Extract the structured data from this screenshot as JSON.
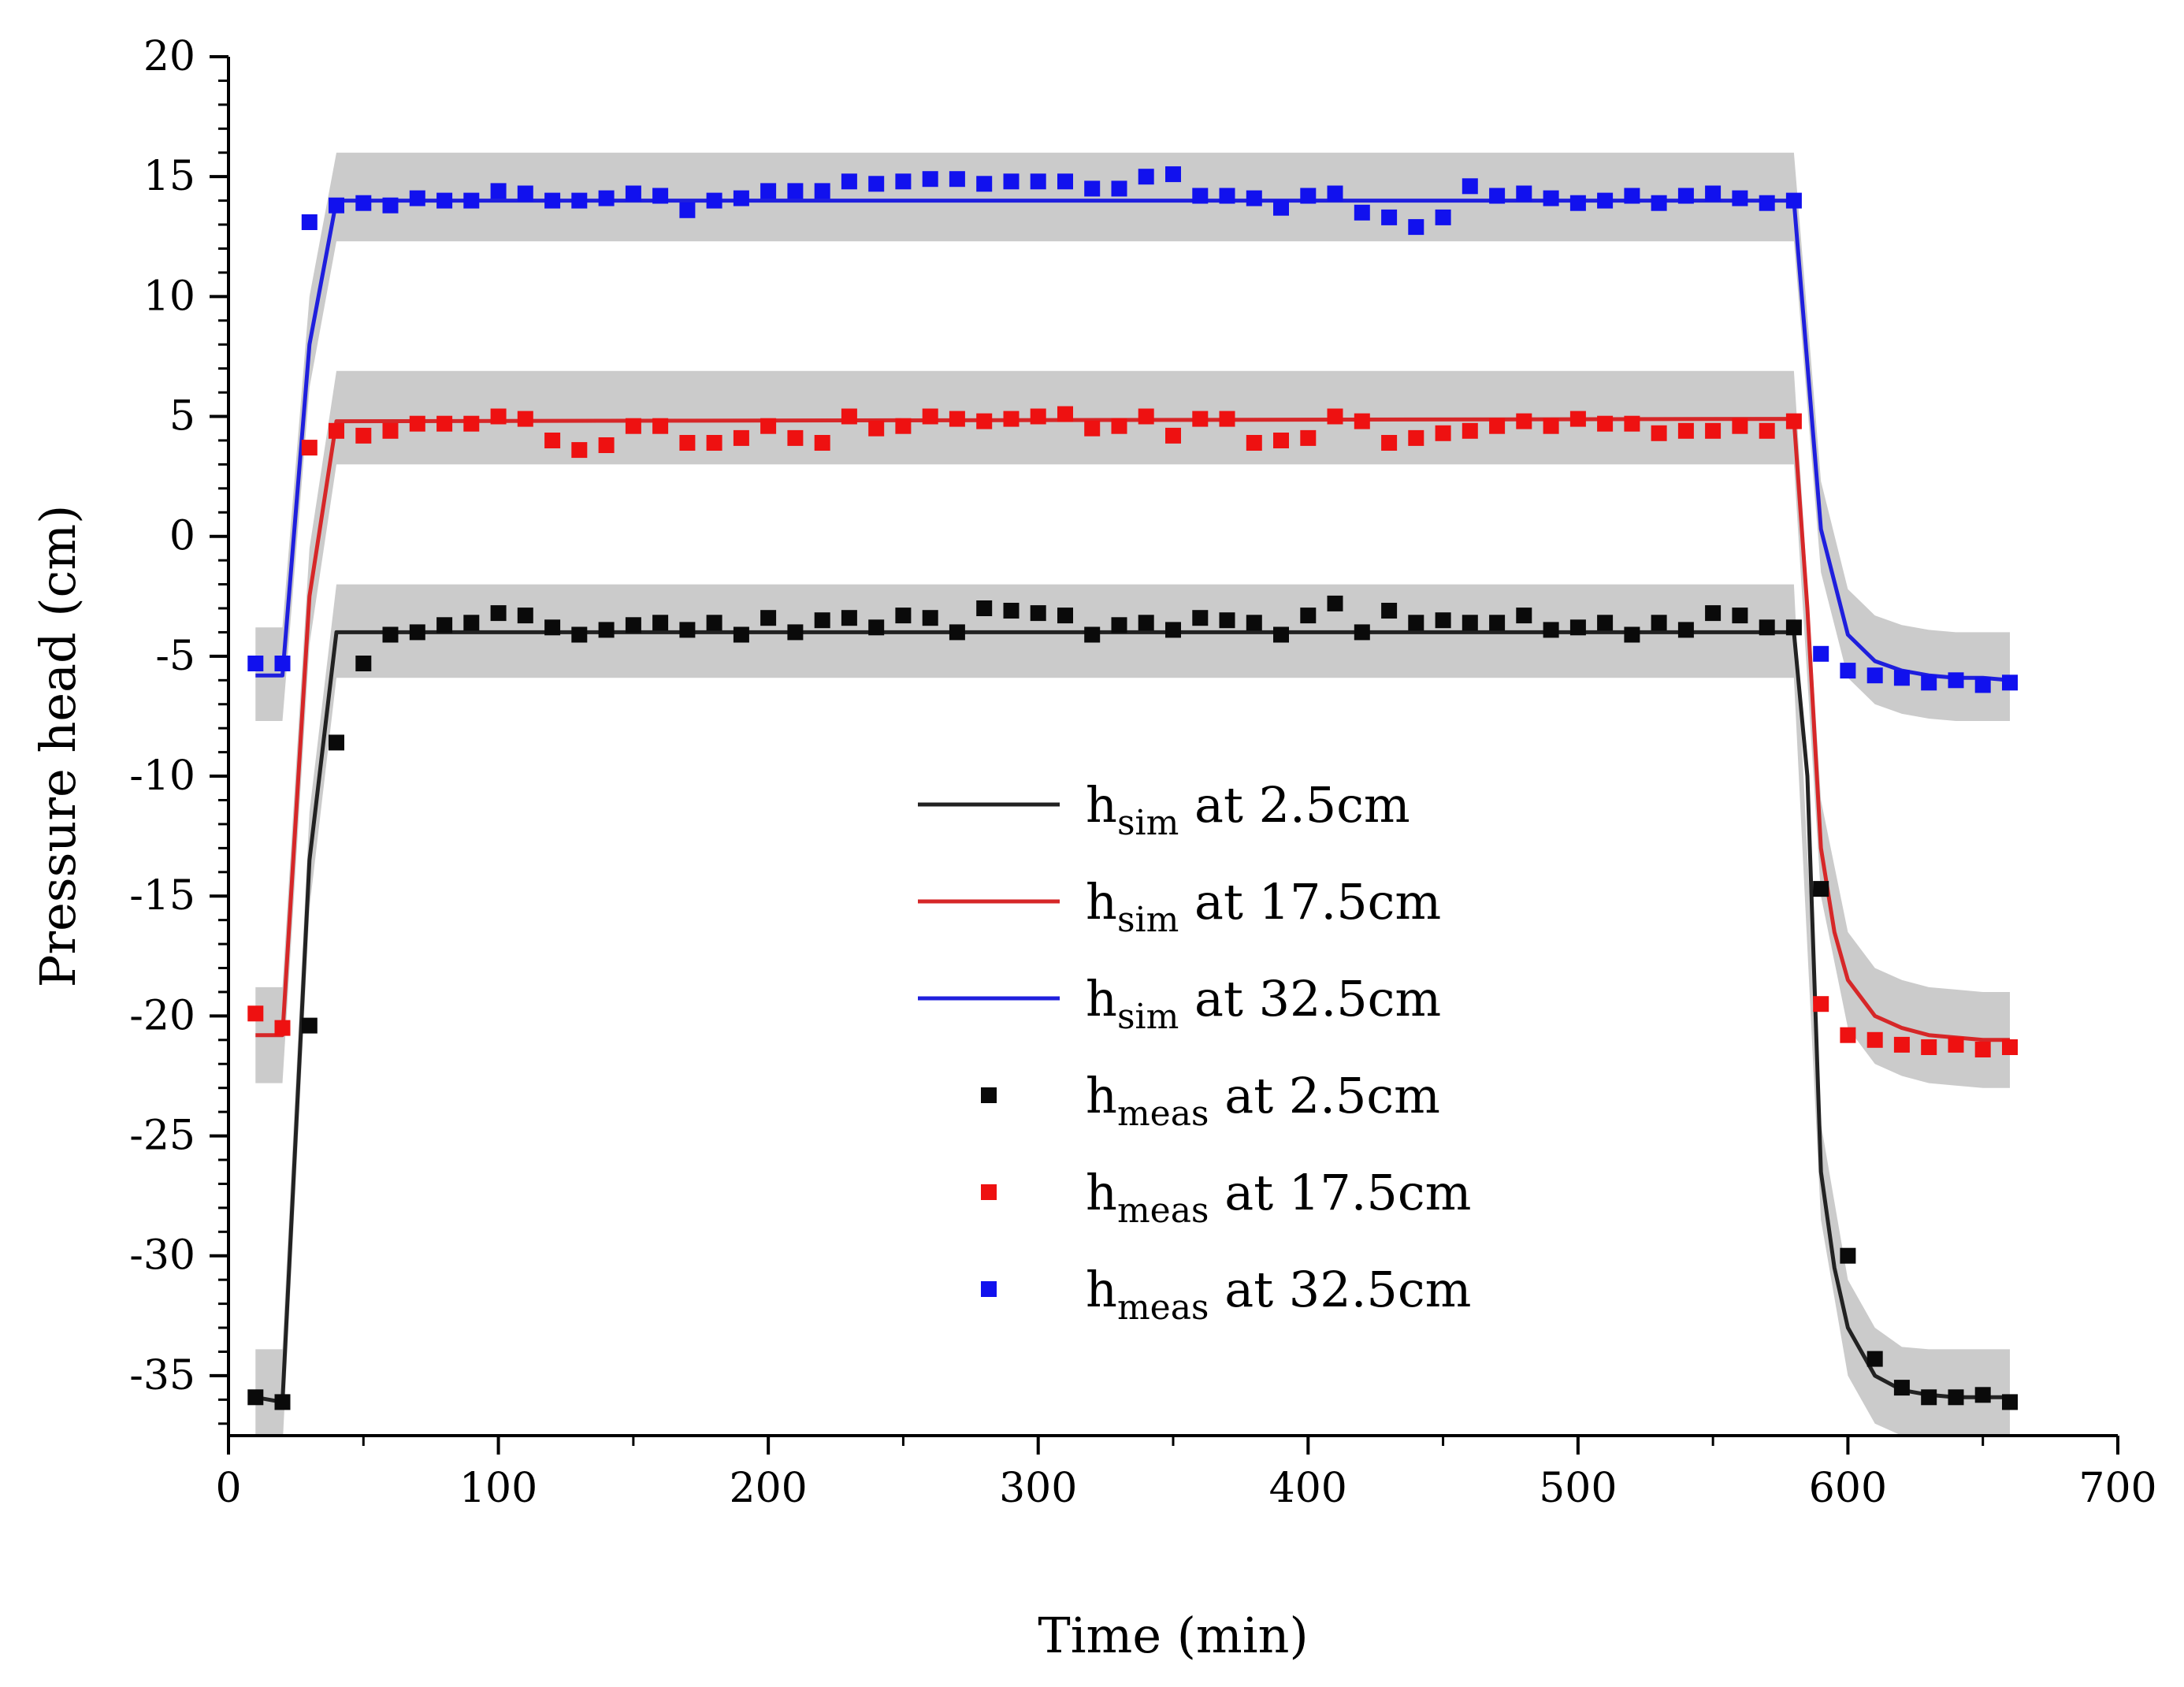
{
  "chart_data": {
    "type": "line",
    "title": "",
    "xlabel": "Time (min)",
    "ylabel": "Pressure head (cm)",
    "xlim": [
      0,
      700
    ],
    "ylim": [
      -37.5,
      20
    ],
    "x_ticks": [
      0,
      100,
      200,
      300,
      400,
      500,
      600,
      700
    ],
    "y_ticks": [
      20,
      15,
      10,
      5,
      0,
      -5,
      -10,
      -15,
      -20,
      -25,
      -30,
      -35
    ],
    "x_tick_labels": [
      "0",
      "100",
      "200",
      "300",
      "400",
      "500",
      "600",
      "700"
    ],
    "y_tick_labels": [
      "20",
      "15",
      "10",
      "5",
      "0",
      "-5",
      "-10",
      "-15",
      "-20",
      "-25",
      "-30",
      "-35"
    ],
    "grid": false,
    "legend_position": "center",
    "colors": {
      "black": "#222222",
      "red": "#d62728",
      "blue": "#1f1fdd",
      "band": "#c8c8c8",
      "meas_black": "#0a0a0a",
      "meas_red": "#ee1111",
      "meas_blue": "#1111ee"
    },
    "legend": [
      {
        "kind": "line",
        "color_key": "black",
        "main": "h",
        "sub": "sim",
        "rest": " at 2.5cm"
      },
      {
        "kind": "line",
        "color_key": "red",
        "main": "h",
        "sub": "sim",
        "rest": " at 17.5cm"
      },
      {
        "kind": "line",
        "color_key": "blue",
        "main": "h",
        "sub": "sim",
        "rest": " at 32.5cm"
      },
      {
        "kind": "marker",
        "color_key": "meas_black",
        "main": "h",
        "sub": "meas",
        "rest": " at 2.5cm"
      },
      {
        "kind": "marker",
        "color_key": "meas_red",
        "main": "h",
        "sub": "meas",
        "rest": " at 17.5cm"
      },
      {
        "kind": "marker",
        "color_key": "meas_blue",
        "main": "h",
        "sub": "meas",
        "rest": " at 32.5cm"
      }
    ],
    "series": [
      {
        "name": "hsim at 2.5cm",
        "kind": "line",
        "color_key": "black",
        "x": [
          10,
          20,
          30,
          40,
          580,
          585,
          590,
          595,
          600,
          610,
          620,
          630,
          640,
          650,
          660
        ],
        "y": [
          -35.9,
          -36.1,
          -13.5,
          -4.0,
          -4.0,
          -10,
          -26.5,
          -30.5,
          -33,
          -35,
          -35.6,
          -35.8,
          -35.9,
          -35.9,
          -35.9
        ]
      },
      {
        "name": "hsim at 17.5cm",
        "kind": "line",
        "color_key": "red",
        "x": [
          10,
          20,
          30,
          40,
          580,
          585,
          590,
          595,
          600,
          610,
          620,
          630,
          640,
          650,
          660
        ],
        "y": [
          -20.8,
          -20.8,
          -2.5,
          4.8,
          4.9,
          -3,
          -13,
          -16.5,
          -18.5,
          -20,
          -20.5,
          -20.8,
          -20.9,
          -21.0,
          -21.0
        ]
      },
      {
        "name": "hsim at 32.5cm",
        "kind": "line",
        "color_key": "blue",
        "x": [
          10,
          20,
          30,
          40,
          580,
          590,
          600,
          610,
          620,
          630,
          640,
          650,
          660
        ],
        "y": [
          -5.8,
          -5.8,
          8.0,
          14.0,
          14.0,
          0.3,
          -4.1,
          -5.2,
          -5.6,
          -5.8,
          -5.9,
          -5.9,
          -6.0
        ]
      },
      {
        "name": "uncertainty band 2.5cm",
        "kind": "band",
        "color_key": "band",
        "x": [
          10,
          20,
          30,
          40,
          580,
          590,
          600,
          610,
          620,
          630,
          640,
          650,
          660
        ],
        "lower": [
          -38,
          -38,
          -15.5,
          -5.9,
          -5.9,
          -28.5,
          -35,
          -37,
          -37.5,
          -37.5,
          -37.5,
          -37.5,
          -37.5
        ],
        "upper": [
          -33.9,
          -33.9,
          -11.5,
          -2.0,
          -2.0,
          -24.5,
          -31,
          -33,
          -33.8,
          -33.9,
          -33.9,
          -33.9,
          -33.9
        ]
      },
      {
        "name": "uncertainty band 17.5cm",
        "kind": "band",
        "color_key": "band",
        "x": [
          10,
          20,
          30,
          40,
          580,
          590,
          600,
          610,
          620,
          630,
          640,
          650,
          660
        ],
        "lower": [
          -22.8,
          -22.8,
          -4.5,
          3.0,
          3.0,
          -15,
          -20.5,
          -22,
          -22.5,
          -22.8,
          -22.9,
          -23.0,
          -23.0
        ],
        "upper": [
          -18.8,
          -18.8,
          -0.5,
          6.9,
          6.9,
          -11,
          -16.5,
          -18,
          -18.5,
          -18.8,
          -18.9,
          -19.0,
          -19.0
        ]
      },
      {
        "name": "uncertainty band 32.5cm",
        "kind": "band",
        "color_key": "band",
        "x": [
          10,
          20,
          30,
          40,
          580,
          590,
          600,
          610,
          620,
          630,
          640,
          650,
          660
        ],
        "lower": [
          -7.7,
          -7.7,
          6.2,
          12.3,
          12.3,
          -1.5,
          -5.9,
          -7.0,
          -7.4,
          -7.6,
          -7.7,
          -7.7,
          -7.7
        ],
        "upper": [
          -3.8,
          -3.8,
          10.0,
          16.0,
          16.0,
          2.3,
          -2.2,
          -3.3,
          -3.7,
          -3.9,
          -4.0,
          -4.0,
          -4.0
        ]
      },
      {
        "name": "hmeas at 2.5cm",
        "kind": "scatter",
        "color_key": "meas_black",
        "x": [
          10,
          20,
          30,
          40,
          50,
          60,
          70,
          80,
          90,
          100,
          110,
          120,
          130,
          140,
          150,
          160,
          170,
          180,
          190,
          200,
          210,
          220,
          230,
          240,
          250,
          260,
          270,
          280,
          290,
          300,
          310,
          320,
          330,
          340,
          350,
          360,
          370,
          380,
          390,
          400,
          410,
          420,
          430,
          440,
          450,
          460,
          470,
          480,
          490,
          500,
          510,
          520,
          530,
          540,
          550,
          560,
          570,
          580,
          590,
          600,
          610,
          620,
          630,
          640,
          650,
          660
        ],
        "y": [
          -35.9,
          -36.1,
          -20.4,
          -8.6,
          -5.3,
          -4.1,
          -4.0,
          -3.7,
          -3.6,
          -3.2,
          -3.3,
          -3.8,
          -4.1,
          -3.9,
          -3.7,
          -3.6,
          -3.9,
          -3.6,
          -4.1,
          -3.4,
          -4.0,
          -3.5,
          -3.4,
          -3.8,
          -3.3,
          -3.4,
          -4.0,
          -3.0,
          -3.1,
          -3.2,
          -3.3,
          -4.1,
          -3.7,
          -3.6,
          -3.9,
          -3.4,
          -3.5,
          -3.6,
          -4.1,
          -3.3,
          -2.8,
          -4.0,
          -3.1,
          -3.6,
          -3.5,
          -3.6,
          -3.6,
          -3.3,
          -3.9,
          -3.8,
          -3.6,
          -4.1,
          -3.6,
          -3.9,
          -3.2,
          -3.3,
          -3.8,
          -3.8,
          -14.7,
          -30.0,
          -34.3,
          -35.5,
          -35.9,
          -35.9,
          -35.8,
          -36.1
        ]
      },
      {
        "name": "hmeas at 17.5cm",
        "kind": "scatter",
        "color_key": "meas_red",
        "x": [
          10,
          20,
          30,
          40,
          50,
          60,
          70,
          80,
          90,
          100,
          110,
          120,
          130,
          140,
          150,
          160,
          170,
          180,
          190,
          200,
          210,
          220,
          230,
          240,
          250,
          260,
          270,
          280,
          290,
          300,
          310,
          320,
          330,
          340,
          350,
          360,
          370,
          380,
          390,
          400,
          410,
          420,
          430,
          440,
          450,
          460,
          470,
          480,
          490,
          500,
          510,
          520,
          530,
          540,
          550,
          560,
          570,
          580,
          590,
          600,
          610,
          620,
          630,
          640,
          650,
          660
        ],
        "y": [
          -19.9,
          -20.5,
          3.7,
          4.4,
          4.2,
          4.4,
          4.7,
          4.7,
          4.7,
          5.0,
          4.9,
          4.0,
          3.6,
          3.8,
          4.6,
          4.6,
          3.9,
          3.9,
          4.1,
          4.6,
          4.1,
          3.9,
          5.0,
          4.5,
          4.6,
          5.0,
          4.9,
          4.8,
          4.9,
          5.0,
          5.1,
          4.5,
          4.6,
          5.0,
          4.2,
          4.9,
          4.9,
          3.9,
          4.0,
          4.1,
          5.0,
          4.8,
          3.9,
          4.1,
          4.3,
          4.4,
          4.6,
          4.8,
          4.6,
          4.9,
          4.7,
          4.7,
          4.3,
          4.4,
          4.4,
          4.6,
          4.4,
          4.8,
          -19.5,
          -20.8,
          -21.0,
          -21.2,
          -21.3,
          -21.2,
          -21.4,
          -21.3
        ]
      },
      {
        "name": "hmeas at 32.5cm",
        "kind": "scatter",
        "color_key": "meas_blue",
        "x": [
          10,
          20,
          30,
          40,
          50,
          60,
          70,
          80,
          90,
          100,
          110,
          120,
          130,
          140,
          150,
          160,
          170,
          180,
          190,
          200,
          210,
          220,
          230,
          240,
          250,
          260,
          270,
          280,
          290,
          300,
          310,
          320,
          330,
          340,
          350,
          360,
          370,
          380,
          390,
          400,
          410,
          420,
          430,
          440,
          450,
          460,
          470,
          480,
          490,
          500,
          510,
          520,
          530,
          540,
          550,
          560,
          570,
          580,
          590,
          600,
          610,
          620,
          630,
          640,
          650,
          660
        ],
        "y": [
          -5.3,
          -5.3,
          13.1,
          13.8,
          13.9,
          13.8,
          14.1,
          14.0,
          14.0,
          14.4,
          14.3,
          14.0,
          14.0,
          14.1,
          14.3,
          14.2,
          13.6,
          14.0,
          14.1,
          14.4,
          14.4,
          14.4,
          14.8,
          14.7,
          14.8,
          14.9,
          14.9,
          14.7,
          14.8,
          14.8,
          14.8,
          14.5,
          14.5,
          15.0,
          15.1,
          14.2,
          14.2,
          14.1,
          13.7,
          14.2,
          14.3,
          13.5,
          13.3,
          12.9,
          13.3,
          14.6,
          14.2,
          14.3,
          14.1,
          13.9,
          14.0,
          14.2,
          13.9,
          14.2,
          14.3,
          14.1,
          13.9,
          14.0,
          -4.9,
          -5.6,
          -5.8,
          -5.9,
          -6.1,
          -6.0,
          -6.2,
          -6.1
        ]
      }
    ]
  }
}
